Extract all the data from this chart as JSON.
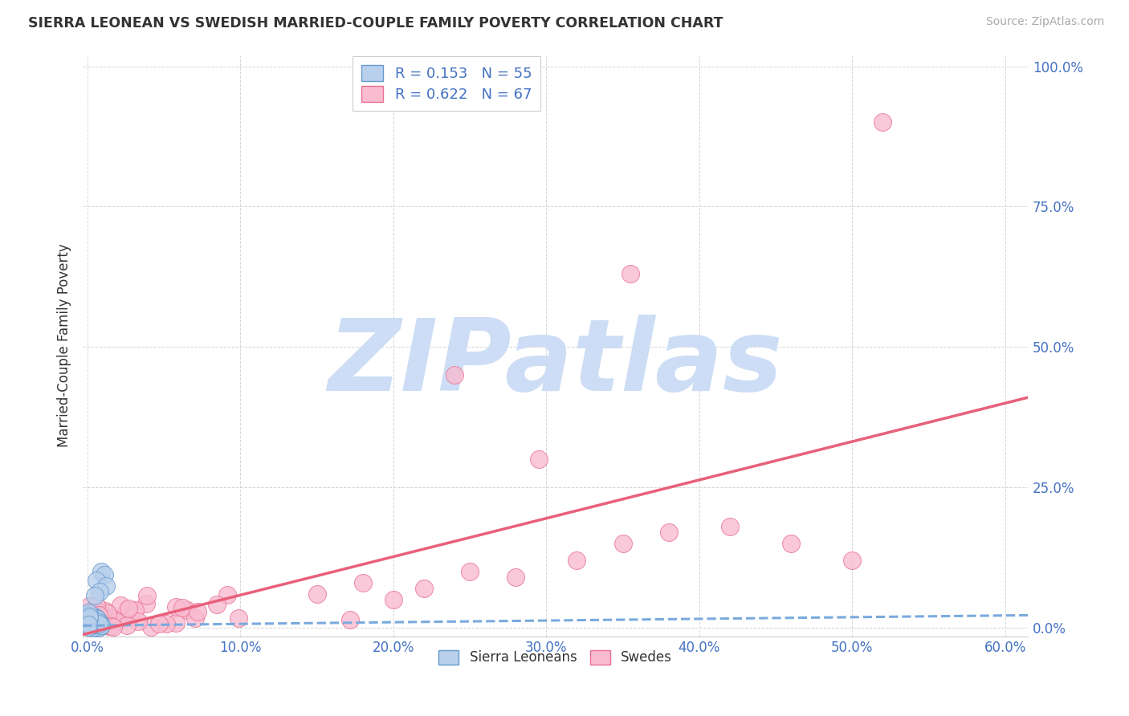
{
  "title": "SIERRA LEONEAN VS SWEDISH MARRIED-COUPLE FAMILY POVERTY CORRELATION CHART",
  "source": "Source: ZipAtlas.com",
  "xlabel_ticks": [
    "0.0%",
    "10.0%",
    "20.0%",
    "30.0%",
    "40.0%",
    "50.0%",
    "60.0%"
  ],
  "ylabel_ticks": [
    "0.0%",
    "25.0%",
    "50.0%",
    "75.0%",
    "100.0%"
  ],
  "ytick_vals": [
    0.0,
    0.25,
    0.5,
    0.75,
    1.0
  ],
  "xtick_vals": [
    0.0,
    0.1,
    0.2,
    0.3,
    0.4,
    0.5,
    0.6
  ],
  "xlim_min": -0.003,
  "xlim_max": 0.615,
  "ylim_min": -0.015,
  "ylim_max": 1.02,
  "watermark": "ZIPatlas",
  "legend_r1": "R = 0.153",
  "legend_n1": "N = 55",
  "legend_r2": "R = 0.622",
  "legend_n2": "N = 67",
  "color_sierra_fill": "#b8d0ec",
  "color_sierra_edge": "#6699cc",
  "color_sierra_line": "#7aaadd",
  "color_sweden_fill": "#f8bbd0",
  "color_sweden_edge": "#e87090",
  "color_sweden_line": "#e8607a",
  "color_title": "#333333",
  "color_tick": "#4472c4",
  "color_legend_text": "#4472c4",
  "background": "#ffffff",
  "grid_color": "#cccccc",
  "watermark_color": "#ccddf5",
  "sl_line_y0": 0.004,
  "sl_line_y1": 0.022,
  "sw_line_y0": -0.01,
  "sw_line_y1": 0.4
}
